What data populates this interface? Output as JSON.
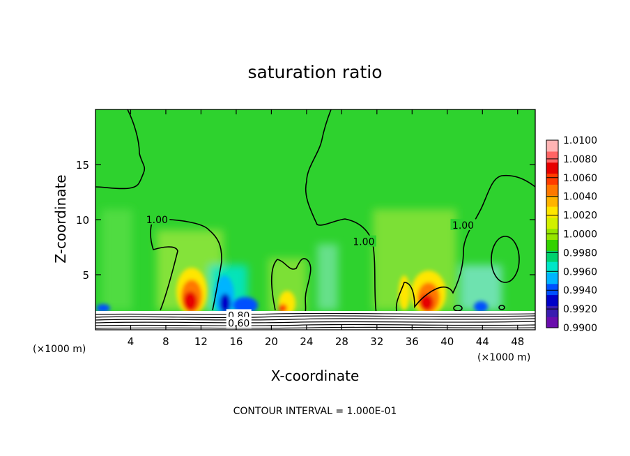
{
  "chart_data": {
    "type": "heatmap",
    "title": "saturation ratio",
    "xlabel": "X-coordinate",
    "ylabel": "Z-coordinate",
    "x_unit": "(×1000 m)",
    "y_unit": "(×1000 m)",
    "footer": "CONTOUR INTERVAL = 1.000E-01",
    "xlim": [
      0,
      50
    ],
    "ylim": [
      0,
      20
    ],
    "x_ticks": [
      4,
      8,
      12,
      16,
      20,
      24,
      28,
      32,
      36,
      40,
      44,
      48
    ],
    "y_ticks": [
      5,
      10,
      15
    ],
    "colorbar": {
      "range": [
        0.99,
        1.01
      ],
      "labels": [
        "1.0100",
        "1.0080",
        "1.0060",
        "1.0040",
        "1.0020",
        "1.0000",
        "0.9980",
        "0.9960",
        "0.9940",
        "0.9920",
        "0.9900"
      ],
      "colors": [
        "#6a0dad",
        "#3a1cb0",
        "#0000c8",
        "#0050ff",
        "#00b4ff",
        "#00e6c8",
        "#00d26e",
        "#32d200",
        "#96e600",
        "#d2f000",
        "#ffe600",
        "#ffb400",
        "#ff7800",
        "#ff3c00",
        "#e60000",
        "#ff6464",
        "#ffb4b4"
      ]
    },
    "contour_labels": [
      {
        "text": "1.00",
        "x": 7.0,
        "z": 10.0
      },
      {
        "text": "1.00",
        "x": 30.5,
        "z": 8.0
      },
      {
        "text": "1.00",
        "x": 41.8,
        "z": 9.5
      },
      {
        "text": "0.80",
        "x": 16.3,
        "z": 1.3
      },
      {
        "text": "0.60",
        "x": 16.3,
        "z": 0.6
      }
    ]
  }
}
